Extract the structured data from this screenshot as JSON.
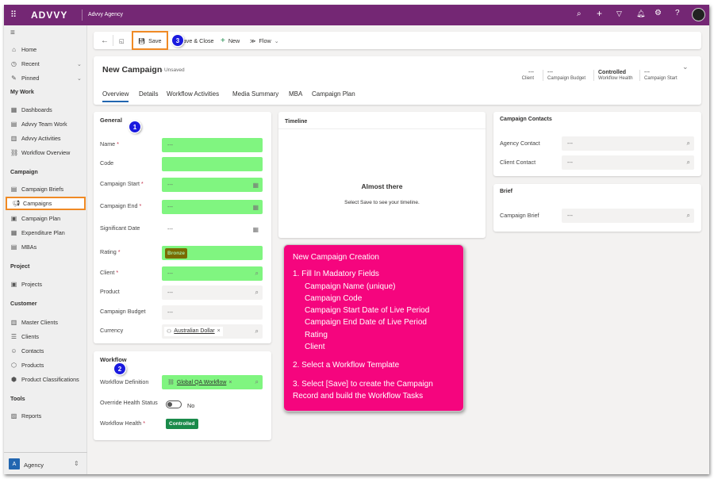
{
  "topbar": {
    "brand": "ADVVY",
    "app_name": "Advvy Agency",
    "icons": [
      "search-icon",
      "add-icon",
      "filter-icon",
      "bell-icon",
      "settings-icon",
      "help-icon",
      "avatar"
    ]
  },
  "sidebar": {
    "items": [
      {
        "label": "Home",
        "icon": "home-icon",
        "t": 56
      },
      {
        "label": "Recent",
        "icon": "clock-icon",
        "t": 74,
        "chev": true
      },
      {
        "label": "Pinned",
        "icon": "pin-icon",
        "t": 92,
        "chev": true
      },
      {
        "label": "Dashboards",
        "icon": "dashboard-icon",
        "t": 132
      },
      {
        "label": "Advvy Team Work",
        "icon": "team-icon",
        "t": 150
      },
      {
        "label": "Advvy Activities",
        "icon": "activities-icon",
        "t": 168
      },
      {
        "label": "Workflow Overview",
        "icon": "workflow-icon",
        "t": 186
      },
      {
        "label": "Campaign Briefs",
        "icon": "brief-icon",
        "t": 232
      },
      {
        "label": "Campaigns",
        "icon": "megaphone-icon",
        "t": 250,
        "active": true
      },
      {
        "label": "Campaign Plan",
        "icon": "plan-icon",
        "t": 269
      },
      {
        "label": "Expenditure Plan",
        "icon": "expenditure-icon",
        "t": 287
      },
      {
        "label": "MBAs",
        "icon": "mba-icon",
        "t": 305
      },
      {
        "label": "Projects",
        "icon": "project-icon",
        "t": 352
      },
      {
        "label": "Master Clients",
        "icon": "building-icon",
        "t": 400
      },
      {
        "label": "Clients",
        "icon": "clients-icon",
        "t": 418
      },
      {
        "label": "Contacts",
        "icon": "contact-icon",
        "t": 436
      },
      {
        "label": "Products",
        "icon": "product-icon",
        "t": 454
      },
      {
        "label": "Product Classifications",
        "icon": "classification-icon",
        "t": 472
      },
      {
        "label": "Reports",
        "icon": "report-icon",
        "t": 518
      }
    ],
    "headers": [
      {
        "label": "My Work",
        "t": 112
      },
      {
        "label": "Campaign",
        "t": 213
      },
      {
        "label": "Project",
        "t": 332
      },
      {
        "label": "Customer",
        "t": 379
      },
      {
        "label": "Tools",
        "t": 499
      }
    ],
    "area": {
      "initial": "A",
      "label": "Agency"
    }
  },
  "commandbar": {
    "save": "Save",
    "save_close": "Save & Close",
    "new": "New",
    "flow": "Flow"
  },
  "header": {
    "title": "New Campaign",
    "status": "- Unsaved",
    "fields": [
      {
        "value": "---",
        "label": "Client"
      },
      {
        "value": "---",
        "label": "Campaign Budget"
      },
      {
        "value": "Controlled",
        "label": "Workflow Health"
      },
      {
        "value": "---",
        "label": "Campaign Start"
      }
    ],
    "tabs": [
      "Overview",
      "Details",
      "Workflow Activities",
      "Media Summary",
      "MBA",
      "Campaign Plan"
    ],
    "active_tab": "Overview"
  },
  "general": {
    "title": "General",
    "fields": [
      {
        "label": "Name",
        "req": true,
        "value": "---",
        "green": true
      },
      {
        "label": "Code",
        "req": false,
        "value": "",
        "green": true
      },
      {
        "label": "Campaign Start",
        "req": true,
        "value": "---",
        "green": true,
        "icon": "calendar-icon"
      },
      {
        "label": "Campaign End",
        "req": true,
        "value": "---",
        "green": true,
        "icon": "calendar-icon"
      },
      {
        "label": "Significant Date",
        "req": false,
        "value": "---",
        "plain": true,
        "icon": "calendar-icon"
      },
      {
        "label": "Rating",
        "req": true,
        "value": "Bronze",
        "green": true,
        "tag": true
      },
      {
        "label": "Client",
        "req": true,
        "value": "---",
        "green": true,
        "icon": "search-icon"
      },
      {
        "label": "Product",
        "req": false,
        "value": "---",
        "icon": "search-icon"
      },
      {
        "label": "Campaign Budget",
        "req": false,
        "value": "---"
      },
      {
        "label": "Currency",
        "req": false,
        "value": "Australian Dollar",
        "lookup": true,
        "icon": "search-icon"
      }
    ]
  },
  "workflow": {
    "title": "Workflow",
    "definition_label": "Workflow Definition",
    "definition_value": "Global QA Workflow",
    "override_label": "Override Health Status",
    "override_value": "No",
    "override_on": false,
    "health_label": "Workflow Health",
    "health_value": "Controlled"
  },
  "timeline": {
    "title": "Timeline",
    "heading": "Almost there",
    "message": "Select Save to see your timeline."
  },
  "contacts": {
    "title": "Campaign Contacts",
    "agency_label": "Agency Contact",
    "agency_value": "---",
    "client_label": "Client Contact",
    "client_value": "---"
  },
  "brief": {
    "title": "Brief",
    "label": "Campaign Brief",
    "value": "---"
  },
  "callout": {
    "title": "New Campaign Creation",
    "step1": "1. Fill In Madatory Fields",
    "fields": [
      "Campaign Name (unique)",
      "Campaign Code",
      "Campaign Start Date of Live Period",
      "Campaign End Date of Live Period",
      "Rating",
      "Client"
    ],
    "step2": "2. Select a Workflow Template",
    "step3": "3. Select [Save] to create the Campaign Record and build the Workflow Tasks"
  },
  "markers": [
    "1",
    "2",
    "3"
  ],
  "colors": {
    "topbar": "#742774",
    "required_field": "#80f580",
    "callout": "#f5057e",
    "highlight": "#f08a24",
    "controlled": "#1a8a4a",
    "bronze": "#7a6a00"
  }
}
